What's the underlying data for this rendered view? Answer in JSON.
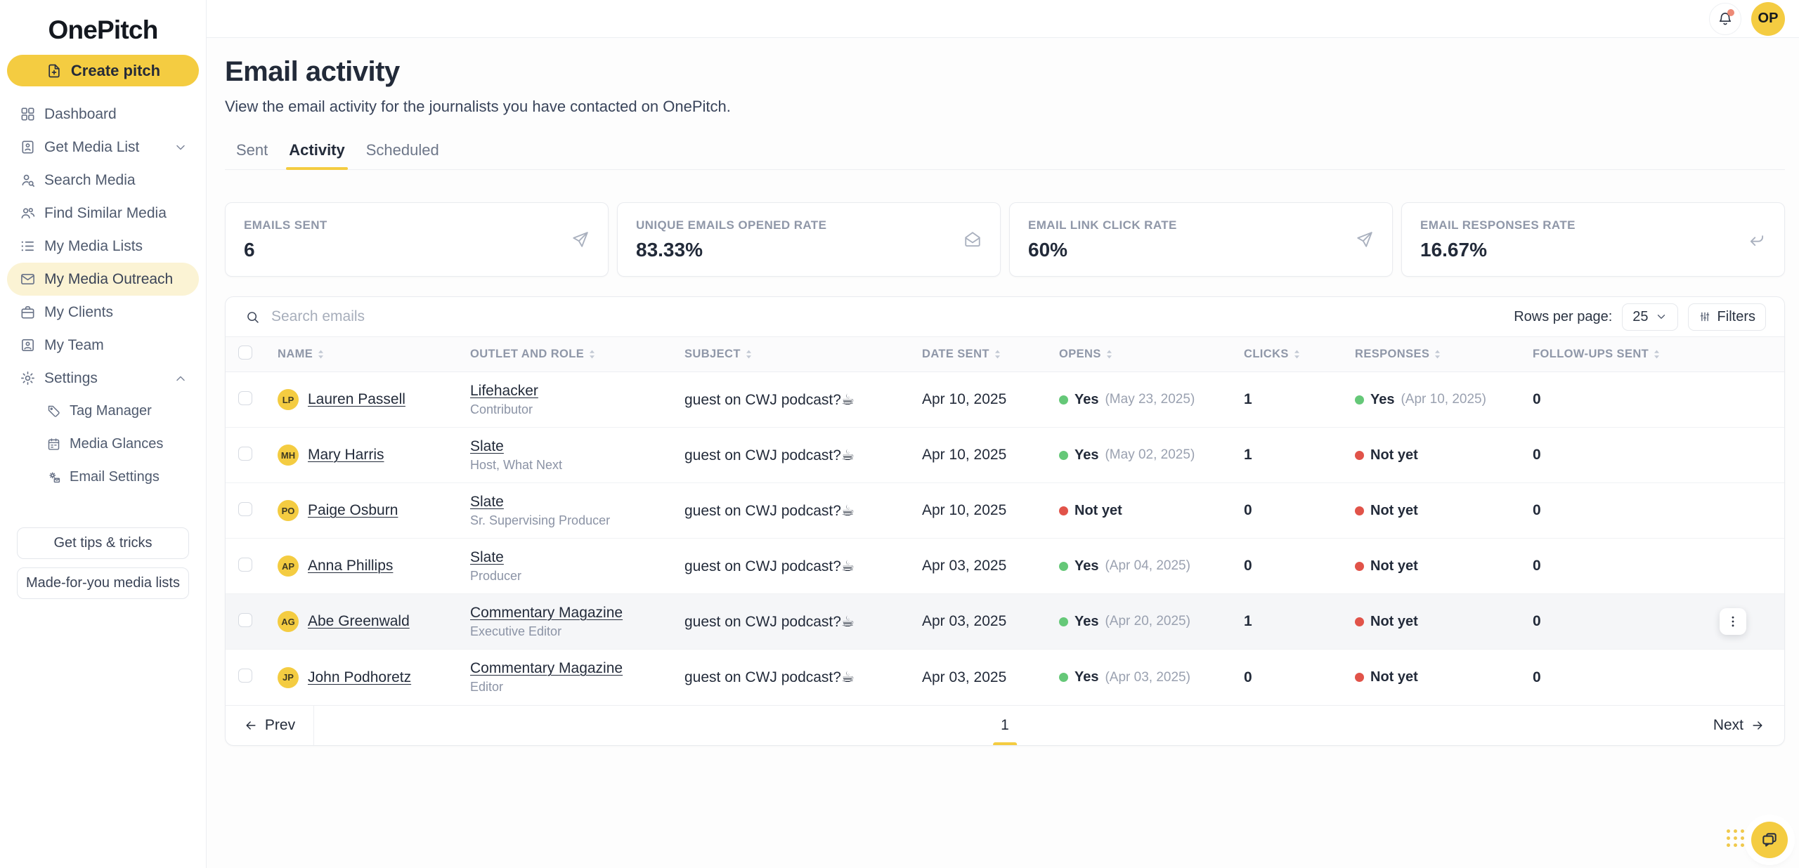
{
  "brand": {
    "logo": "OnePitch",
    "accent_color": "#F4CC41"
  },
  "sidebar": {
    "create_button": {
      "label": "Create pitch",
      "icon": "file-plus"
    },
    "items": [
      {
        "label": "Dashboard",
        "icon": "dashboard"
      },
      {
        "label": "Get Media List",
        "icon": "contact-card",
        "chevron": "chevron-down"
      },
      {
        "label": "Search Media",
        "icon": "person-search"
      },
      {
        "label": "Find Similar Media",
        "icon": "people"
      },
      {
        "label": "My Media Lists",
        "icon": "list"
      },
      {
        "label": "My Media Outreach",
        "icon": "envelope",
        "active": true
      },
      {
        "label": "My Clients",
        "icon": "briefcase"
      },
      {
        "label": "My Team",
        "icon": "id-badge"
      },
      {
        "label": "Settings",
        "icon": "gear",
        "chevron": "chevron-up"
      }
    ],
    "settings_subitems": [
      {
        "label": "Tag Manager",
        "icon": "tag"
      },
      {
        "label": "Media Glances",
        "icon": "calendar"
      },
      {
        "label": "Email Settings",
        "icon": "gear-mail"
      }
    ],
    "footer_buttons": [
      {
        "label": "Get tips & tricks"
      },
      {
        "label": "Made-for-you media lists"
      }
    ]
  },
  "topbar": {
    "notification": true,
    "avatar_initials": "OP"
  },
  "header": {
    "title": "Email activity",
    "subtitle": "View the email activity for the journalists you have contacted on OnePitch.",
    "tabs": [
      {
        "label": "Sent"
      },
      {
        "label": "Activity",
        "active": true
      },
      {
        "label": "Scheduled"
      }
    ]
  },
  "stats": [
    {
      "label": "EMAILS SENT",
      "value": "6",
      "icon": "send"
    },
    {
      "label": "UNIQUE EMAILS OPENED RATE",
      "value": "83.33%",
      "icon": "envelope-open"
    },
    {
      "label": "EMAIL LINK CLICK RATE",
      "value": "60%",
      "icon": "send"
    },
    {
      "label": "EMAIL RESPONSES RATE",
      "value": "16.67%",
      "icon": "reply"
    }
  ],
  "table": {
    "search_placeholder": "Search emails",
    "rows_per_page_label": "Rows per page:",
    "rows_per_page_value": "25",
    "filters_label": "Filters",
    "columns": [
      "NAME",
      "OUTLET AND ROLE",
      "SUBJECT",
      "DATE SENT",
      "OPENS",
      "CLICKS",
      "RESPONSES",
      "FOLLOW-UPS SENT"
    ],
    "status_colors": {
      "yes": "#65C878",
      "not_yet": "#E15349"
    },
    "rows": [
      {
        "initials": "LP",
        "name": "Lauren Passell",
        "outlet": "Lifehacker",
        "role": "Contributor",
        "subject": "guest on CWJ podcast?☕",
        "date": "Apr 10, 2025",
        "opens": {
          "status": "yes",
          "text": "Yes",
          "date": "(May 23, 2025)"
        },
        "clicks": "1",
        "responses": {
          "status": "yes",
          "text": "Yes",
          "date": "(Apr 10, 2025)"
        },
        "followups": "0"
      },
      {
        "initials": "MH",
        "name": "Mary Harris",
        "outlet": "Slate",
        "role": "Host, What Next",
        "subject": "guest on CWJ podcast?☕",
        "date": "Apr 10, 2025",
        "opens": {
          "status": "yes",
          "text": "Yes",
          "date": "(May 02, 2025)"
        },
        "clicks": "1",
        "responses": {
          "status": "no",
          "text": "Not yet"
        },
        "followups": "0"
      },
      {
        "initials": "PO",
        "name": "Paige Osburn",
        "outlet": "Slate",
        "role": "Sr. Supervising Producer",
        "subject": "guest on CWJ podcast?☕",
        "date": "Apr 10, 2025",
        "opens": {
          "status": "no",
          "text": "Not yet"
        },
        "clicks": "0",
        "responses": {
          "status": "no",
          "text": "Not yet"
        },
        "followups": "0"
      },
      {
        "initials": "AP",
        "name": "Anna Phillips",
        "outlet": "Slate",
        "role": "Producer",
        "subject": "guest on CWJ podcast?☕",
        "date": "Apr 03, 2025",
        "opens": {
          "status": "yes",
          "text": "Yes",
          "date": "(Apr 04, 2025)"
        },
        "clicks": "0",
        "responses": {
          "status": "no",
          "text": "Not yet"
        },
        "followups": "0"
      },
      {
        "initials": "AG",
        "name": "Abe Greenwald",
        "outlet": "Commentary Magazine",
        "role": "Executive Editor",
        "subject": "guest on CWJ podcast?☕",
        "date": "Apr 03, 2025",
        "opens": {
          "status": "yes",
          "text": "Yes",
          "date": "(Apr 20, 2025)"
        },
        "clicks": "1",
        "responses": {
          "status": "no",
          "text": "Not yet"
        },
        "followups": "0",
        "highlighted": true
      },
      {
        "initials": "JP",
        "name": "John Podhoretz",
        "outlet": "Commentary Magazine",
        "role": "Editor",
        "subject": "guest on CWJ podcast?☕",
        "date": "Apr 03, 2025",
        "opens": {
          "status": "yes",
          "text": "Yes",
          "date": "(Apr 03, 2025)"
        },
        "clicks": "0",
        "responses": {
          "status": "no",
          "text": "Not yet"
        },
        "followups": "0"
      }
    ],
    "pagination": {
      "prev": "Prev",
      "page": "1",
      "next": "Next"
    }
  }
}
